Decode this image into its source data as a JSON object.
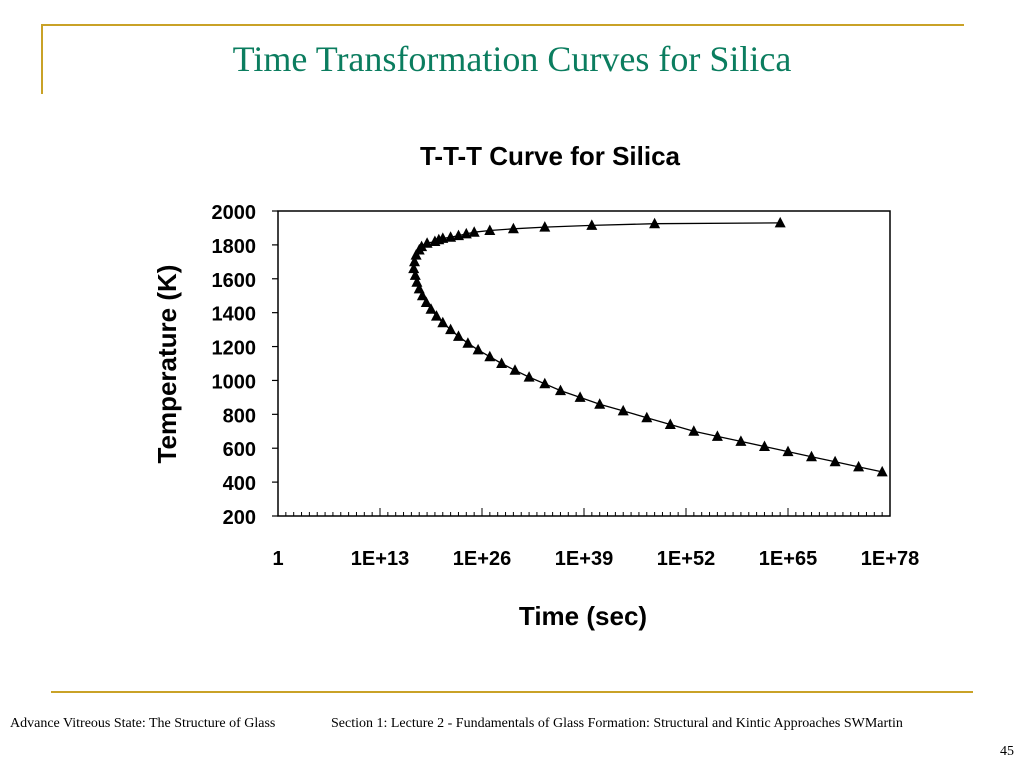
{
  "slide": {
    "title": "Time Transformation Curves for Silica",
    "accent_color": "#c9a227",
    "title_color": "#0b7d5f"
  },
  "footer": {
    "left_text": "Advance Vitreous State: The Structure of Glass",
    "right_text": "Section 1: Lecture 2 - Fundamentals of Glass Formation: Structural and Kintic Approaches SWMartin",
    "page_number": "45"
  },
  "chart_data": {
    "type": "scatter",
    "title": "T-T-T Curve for Silica",
    "xlabel": "Time (sec)",
    "ylabel": "Temperature (K)",
    "x_scale": "log",
    "xlim": [
      "1",
      "1E+78"
    ],
    "ylim": [
      200,
      2000
    ],
    "x_tick_labels": [
      "1",
      "1E+13",
      "1E+26",
      "1E+39",
      "1E+52",
      "1E+65",
      "1E+78"
    ],
    "y_tick_labels": [
      "2000",
      "1800",
      "1600",
      "1400",
      "1200",
      "1000",
      "800",
      "600",
      "400",
      "200"
    ],
    "grid": false,
    "legend": "none",
    "marker": "triangle",
    "series": [
      {
        "x": [
          "1E+64",
          "1E+48",
          "1E+40",
          "1E+34",
          "1E+30",
          "1E+27",
          "1E+25",
          "1E+24",
          "1E+23",
          "1E+22",
          "1E+21",
          "1E+20.5",
          "1E+20",
          "1E+19",
          "1E+18.3",
          "1E+18",
          "1E+17.6",
          "1E+17.4",
          "1E+17.3",
          "1E+17.5",
          "1E+17.7",
          "1E+18",
          "1E+18.4",
          "1E+18.9",
          "1E+19.5",
          "1E+20.2",
          "1E+21",
          "1E+22",
          "1E+23",
          "1E+24.2",
          "1E+25.5",
          "1E+27",
          "1E+28.5",
          "1E+30.2",
          "1E+32",
          "1E+34",
          "1E+36",
          "1E+38.5",
          "1E+41",
          "1E+44",
          "1E+47",
          "1E+50",
          "1E+53",
          "1E+56",
          "1E+59",
          "1E+62",
          "1E+65",
          "1E+68",
          "1E+71",
          "1E+74",
          "1E+77"
        ],
        "y": [
          1930,
          1925,
          1915,
          1905,
          1895,
          1885,
          1875,
          1865,
          1855,
          1845,
          1838,
          1830,
          1820,
          1810,
          1790,
          1770,
          1740,
          1700,
          1660,
          1620,
          1580,
          1540,
          1500,
          1460,
          1420,
          1380,
          1340,
          1300,
          1260,
          1220,
          1180,
          1140,
          1100,
          1060,
          1020,
          980,
          940,
          900,
          860,
          820,
          780,
          740,
          700,
          670,
          640,
          610,
          580,
          550,
          520,
          490,
          460
        ]
      }
    ]
  }
}
